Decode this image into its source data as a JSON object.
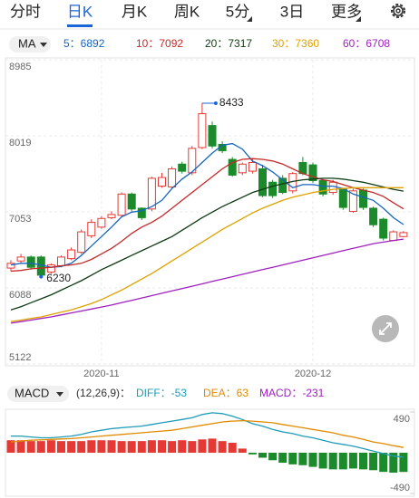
{
  "tabs": [
    "分时",
    "日K",
    "月K",
    "周K",
    "5分",
    "3日",
    "更多"
  ],
  "selected_tab": 1,
  "chart_data": {
    "type": "candlestick",
    "indicator": "MA",
    "categories": [
      null,
      null,
      null,
      null,
      null,
      null,
      null,
      null,
      null,
      "2020-11",
      null,
      null,
      null,
      null,
      null,
      null,
      null,
      null,
      null,
      null,
      null,
      null,
      null,
      null,
      null,
      null,
      null,
      null,
      null,
      null,
      "2020-12",
      null,
      null,
      null,
      null,
      null,
      null,
      null,
      null,
      null
    ],
    "open": [
      6340,
      6430,
      6480,
      6480,
      6290,
      6370,
      6460,
      6540,
      6750,
      6860,
      6980,
      7010,
      7280,
      7100,
      7090,
      7380,
      7370,
      7660,
      7550,
      7870,
      8150,
      7910,
      7720,
      7550,
      7570,
      7600,
      7430,
      7480,
      7320,
      7680,
      7650,
      7450,
      7300,
      7340,
      7060,
      7330,
      7100,
      6960,
      6690,
      6740
    ],
    "high": [
      6440,
      6520,
      6500,
      6500,
      6400,
      6500,
      6600,
      6830,
      6960,
      7000,
      7060,
      7300,
      7300,
      7110,
      7500,
      7550,
      7630,
      7690,
      7890,
      8433,
      8200,
      7950,
      7750,
      7680,
      7720,
      7650,
      7460,
      7520,
      7560,
      7750,
      7680,
      7470,
      7460,
      7360,
      7350,
      7350,
      7120,
      6980,
      6820,
      6810
    ],
    "low": [
      6300,
      6400,
      6320,
      6230,
      6267,
      6350,
      6440,
      6520,
      6720,
      6840,
      6960,
      6990,
      7060,
      6950,
      7060,
      7360,
      7350,
      7540,
      7520,
      7850,
      7860,
      7800,
      7500,
      7520,
      7540,
      7240,
      7230,
      7280,
      7290,
      7520,
      7420,
      7250,
      7270,
      7080,
      7040,
      7080,
      6860,
      6690,
      6680,
      6730
    ],
    "close": [
      6400,
      6480,
      6350,
      6250,
      6380,
      6480,
      6570,
      6800,
      6920,
      6970,
      7020,
      7280,
      7090,
      6980,
      7480,
      7490,
      7600,
      7570,
      7860,
      8300,
      7890,
      7830,
      7520,
      7660,
      7680,
      7260,
      7260,
      7300,
      7540,
      7540,
      7450,
      7280,
      7430,
      7110,
      7320,
      7110,
      6890,
      6720,
      6800,
      6790
    ],
    "up_color": "#e53935",
    "down_color": "#1b8a2a",
    "ylim": [
      5122,
      8985
    ],
    "yticks": [
      8985,
      8019,
      7053,
      6088,
      5122
    ],
    "grid": true,
    "series": [
      {
        "name": "5：6892",
        "color": "#1565c0",
        "values": [
          6380,
          6400,
          6400,
          6380,
          6350,
          6360,
          6400,
          6500,
          6620,
          6740,
          6860,
          6990,
          7050,
          7070,
          7120,
          7200,
          7350,
          7470,
          7560,
          7680,
          7800,
          7900,
          7920,
          7850,
          7700,
          7640,
          7560,
          7460,
          7360,
          7400,
          7400,
          7380,
          7380,
          7350,
          7280,
          7240,
          7200,
          7100,
          6980,
          6892
        ]
      },
      {
        "name": "10：7092",
        "color": "#c62828",
        "values": [
          6300,
          6310,
          6330,
          6340,
          6350,
          6370,
          6380,
          6400,
          6450,
          6520,
          6590,
          6680,
          6780,
          6860,
          6920,
          7000,
          7100,
          7200,
          7300,
          7400,
          7500,
          7600,
          7680,
          7720,
          7730,
          7720,
          7700,
          7660,
          7600,
          7540,
          7500,
          7460,
          7440,
          7400,
          7360,
          7330,
          7300,
          7250,
          7170,
          7092
        ]
      },
      {
        "name": "20：7317",
        "color": "#0d3b12",
        "values": [
          5810,
          5850,
          5900,
          5950,
          6000,
          6060,
          6120,
          6180,
          6250,
          6320,
          6380,
          6440,
          6500,
          6560,
          6620,
          6680,
          6740,
          6820,
          6900,
          6980,
          7050,
          7120,
          7180,
          7240,
          7300,
          7340,
          7380,
          7410,
          7440,
          7460,
          7470,
          7480,
          7480,
          7470,
          7450,
          7430,
          7400,
          7370,
          7340,
          7317
        ]
      },
      {
        "name": "30：7360",
        "color": "#e0a000",
        "values": [
          5660,
          5680,
          5700,
          5720,
          5750,
          5780,
          5810,
          5850,
          5890,
          5940,
          6000,
          6060,
          6130,
          6200,
          6270,
          6350,
          6430,
          6510,
          6590,
          6670,
          6750,
          6830,
          6900,
          6970,
          7040,
          7100,
          7150,
          7200,
          7240,
          7270,
          7300,
          7320,
          7340,
          7350,
          7360,
          7360,
          7360,
          7360,
          7360,
          7360
        ]
      },
      {
        "name": "60：6708",
        "color": "#a020c0",
        "values": [
          5640,
          5660,
          5680,
          5700,
          5720,
          5745,
          5770,
          5795,
          5820,
          5845,
          5870,
          5900,
          5930,
          5960,
          5990,
          6020,
          6050,
          6080,
          6110,
          6140,
          6170,
          6200,
          6230,
          6260,
          6290,
          6320,
          6350,
          6380,
          6410,
          6440,
          6470,
          6500,
          6530,
          6560,
          6590,
          6620,
          6650,
          6670,
          6690,
          6708
        ]
      }
    ]
  },
  "macd": {
    "type": "macd",
    "name": "MACD",
    "params": "(12,26,9)：",
    "ylim": [
      -490,
      490
    ],
    "yticks": [
      490,
      -490
    ],
    "up_color": "#e53935",
    "down_color": "#1b8a2a",
    "bars": {
      "name": "MACD：-231",
      "color": "#a020c0",
      "values": [
        150,
        150,
        140,
        140,
        150,
        140,
        140,
        140,
        150,
        150,
        150,
        140,
        140,
        140,
        150,
        150,
        140,
        150,
        140,
        160,
        170,
        140,
        120,
        50,
        -20,
        -60,
        -90,
        -120,
        -140,
        -150,
        -170,
        -190,
        -200,
        -200,
        -190,
        -200,
        -210,
        -230,
        -240,
        -231
      ]
    },
    "series": [
      {
        "name": "DIFF：-53",
        "color": "#1e9bb8",
        "values": [
          200,
          200,
          190,
          180,
          180,
          190,
          200,
          220,
          250,
          270,
          290,
          300,
          310,
          320,
          340,
          360,
          380,
          400,
          420,
          460,
          480,
          470,
          440,
          400,
          350,
          320,
          280,
          250,
          230,
          200,
          180,
          150,
          120,
          100,
          80,
          50,
          20,
          -10,
          -40,
          -53
        ]
      },
      {
        "name": "DEA：63",
        "color": "#e08a00",
        "values": [
          130,
          140,
          150,
          155,
          160,
          165,
          170,
          180,
          190,
          200,
          210,
          220,
          230,
          240,
          250,
          260,
          270,
          290,
          310,
          330,
          350,
          370,
          380,
          385,
          380,
          370,
          360,
          340,
          320,
          300,
          280,
          260,
          240,
          210,
          190,
          160,
          130,
          110,
          85,
          63
        ]
      }
    ]
  }
}
